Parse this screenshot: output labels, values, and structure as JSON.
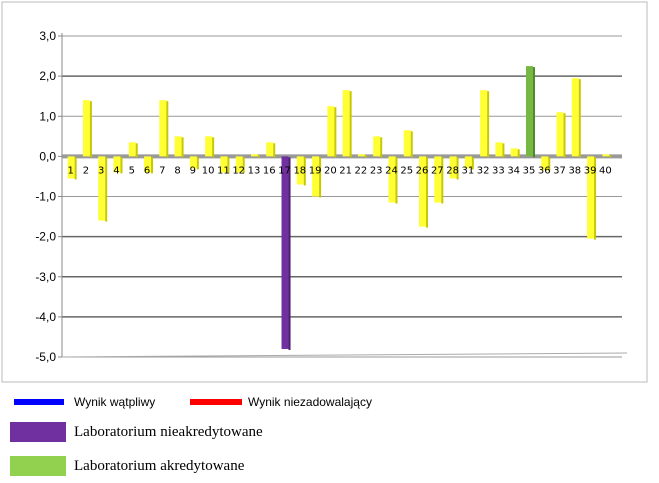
{
  "chart_data": {
    "type": "bar",
    "title": "",
    "xlabel": "",
    "ylabel": "",
    "ylim": [
      -5.0,
      3.0
    ],
    "yticks": [
      "3,0",
      "2,0",
      "1,0",
      "0,0",
      "-1,0",
      "-2,0",
      "-3,0",
      "-4,0",
      "-5,0"
    ],
    "grid": true,
    "categories": [
      "1",
      "2",
      "3",
      "4",
      "5",
      "6",
      "7",
      "8",
      "9",
      "10",
      "11",
      "12",
      "13",
      "16",
      "17",
      "18",
      "19",
      "20",
      "21",
      "22",
      "23",
      "24",
      "25",
      "26",
      "27",
      "28",
      "31",
      "32",
      "33",
      "34",
      "35",
      "36",
      "37",
      "38",
      "39",
      "40"
    ],
    "values": [
      -0.55,
      1.4,
      -1.6,
      -0.4,
      0.35,
      -0.4,
      1.4,
      0.5,
      -0.3,
      0.5,
      -0.4,
      -0.4,
      0.05,
      0.35,
      -4.8,
      -0.7,
      -1.0,
      1.25,
      1.65,
      0.05,
      0.5,
      -1.15,
      0.65,
      -1.75,
      -1.15,
      -0.55,
      -0.3,
      1.65,
      0.35,
      0.2,
      2.25,
      -0.35,
      1.1,
      1.95,
      -2.05,
      0.05
    ],
    "bar_colors": {
      "default": "#ffff33",
      "17": "#7030a0",
      "35": "#77b843"
    },
    "reference_lines": {
      "dark_gridlines": [
        2.0,
        -2.0,
        -3.0,
        -4.0
      ]
    }
  },
  "legend": [
    {
      "label": "Wynik wątpliwy",
      "color": "#0000ff"
    },
    {
      "label": "Wynik niezadowalający",
      "color": "#ff0000"
    },
    {
      "label": "Laboratorium nieakredytowane",
      "color": "#7030a0"
    },
    {
      "label": "Laboratorium akredytowane",
      "color": "#92d050"
    }
  ]
}
